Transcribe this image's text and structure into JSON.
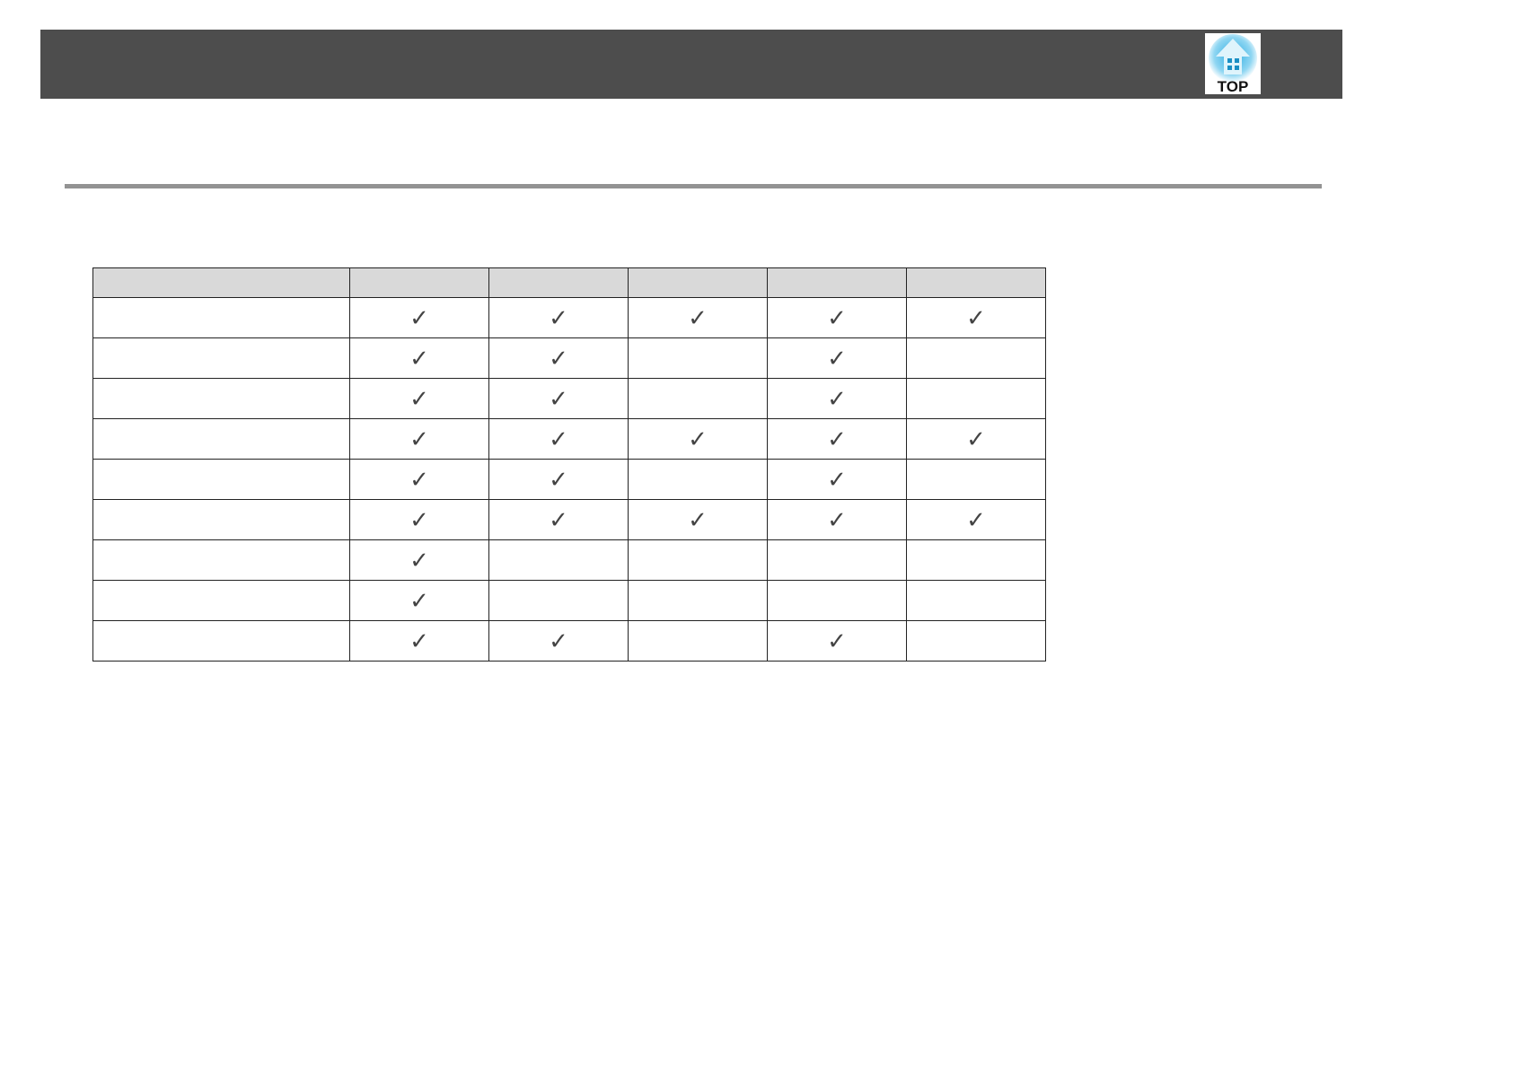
{
  "header": {
    "top_button": {
      "label": "TOP",
      "icon": "home-arrow-up-icon",
      "color": "#29abe2"
    }
  },
  "table": {
    "columns": 6,
    "check_symbol": "✓",
    "rows": [
      [
        true,
        true,
        true,
        true,
        true
      ],
      [
        true,
        true,
        false,
        true,
        false
      ],
      [
        true,
        true,
        false,
        true,
        false
      ],
      [
        true,
        true,
        true,
        true,
        true
      ],
      [
        true,
        true,
        false,
        true,
        false
      ],
      [
        true,
        true,
        true,
        true,
        true
      ],
      [
        true,
        false,
        false,
        false,
        false
      ],
      [
        true,
        false,
        false,
        false,
        false
      ],
      [
        true,
        true,
        false,
        true,
        false
      ]
    ]
  }
}
